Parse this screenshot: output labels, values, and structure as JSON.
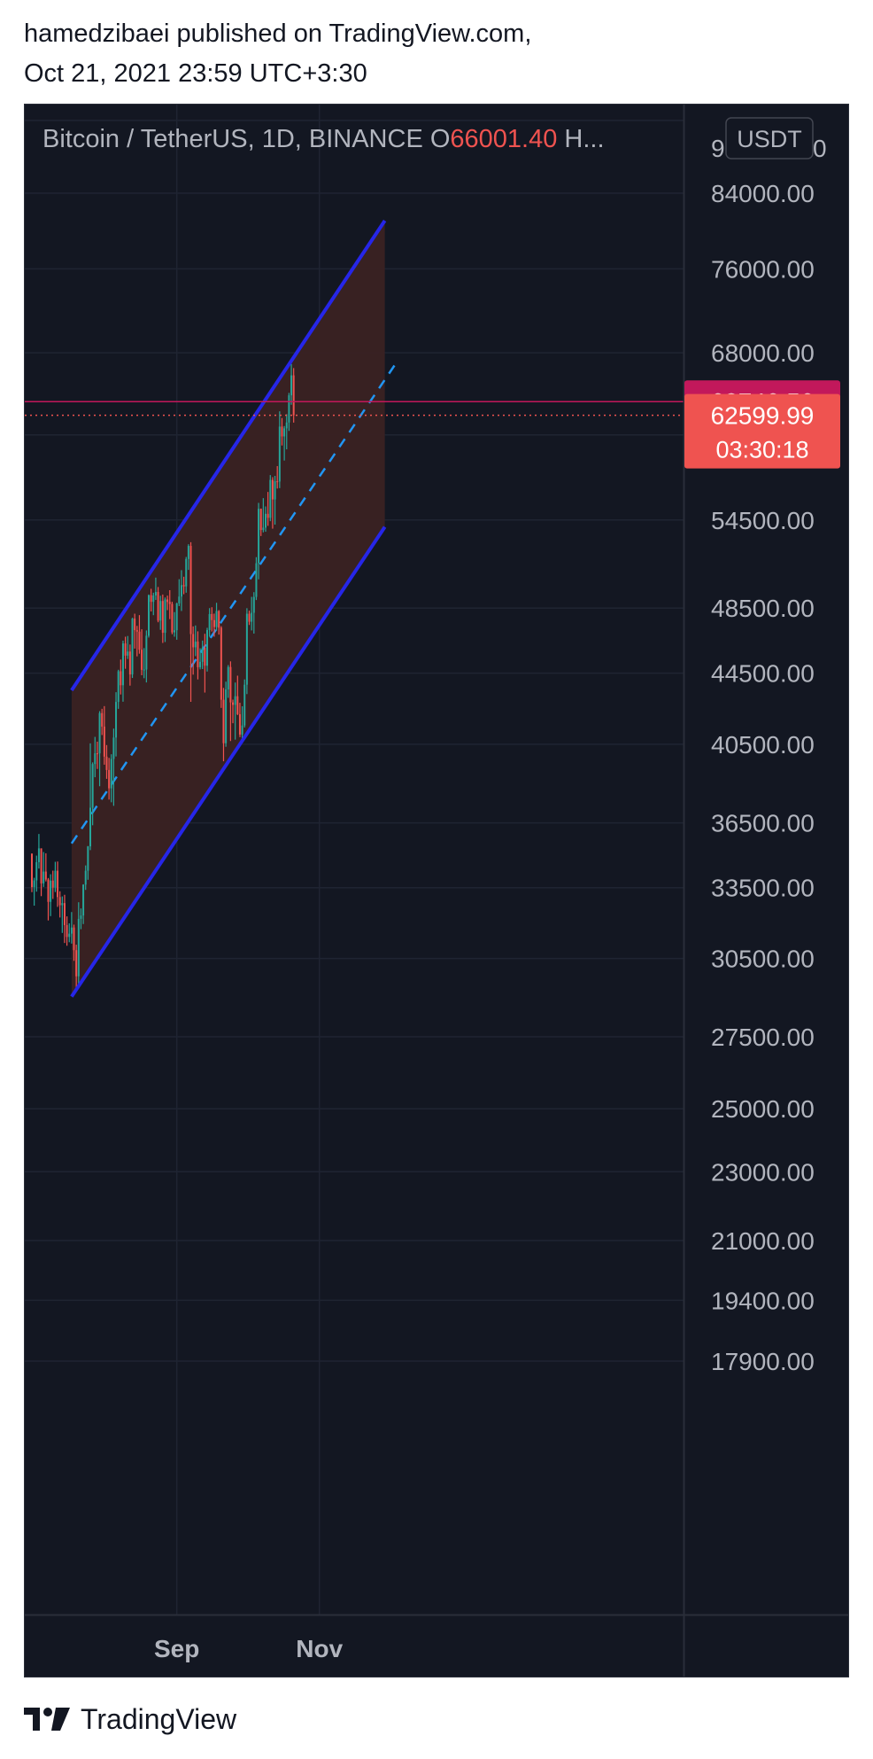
{
  "publication": {
    "author_line": "hamedzibaei published on TradingView.com,",
    "date_line": "Oct 21, 2021 23:59 UTC+3:30"
  },
  "chart_data": {
    "type": "candlestick",
    "title": "Bitcoin / TetherUS, 1D, BINANCE",
    "ohlc_label": "O",
    "ohlc_open": "66001.40",
    "ohlc_more": "H...",
    "currency": "USDT",
    "scale": "log",
    "ylim": [
      17200,
      96000
    ],
    "y_ticks": [
      "84000.00",
      "76000.00",
      "68000.00",
      "54500.00",
      "48500.00",
      "44500.00",
      "40500.00",
      "36500.00",
      "33500.00",
      "30500.00",
      "27500.00",
      "25000.00",
      "23000.00",
      "21000.00",
      "19400.00",
      "17900.00"
    ],
    "top_tick_partial": [
      "9",
      "0"
    ],
    "x_ticks": [
      "Sep",
      "Nov"
    ],
    "x_range": [
      "2021-07-01",
      "2021-12-20"
    ],
    "price_labels": [
      {
        "value": "63746.56",
        "color": "#c2185b"
      },
      {
        "value": "62599.99",
        "sub": "03:30:18",
        "color": "#ef5350"
      }
    ],
    "channel": {
      "color": "#2626e8",
      "fill": "#3a2223",
      "upper": [
        {
          "date": "2021-07-18",
          "price": 43500
        },
        {
          "date": "2021-11-29",
          "price": 81000
        }
      ],
      "lower": [
        {
          "date": "2021-07-18",
          "price": 29000
        },
        {
          "date": "2021-11-29",
          "price": 54000
        }
      ],
      "mid_color": "#2196f3"
    },
    "colors": {
      "up": "#26a69a",
      "down": "#ef5350",
      "bg": "#131722",
      "grid": "#1f2432",
      "text": "#b2b5be"
    },
    "candles": [
      [
        "2021-07-01",
        35045,
        35045,
        33301,
        33526
      ],
      [
        "2021-07-02",
        33526,
        33939,
        32711,
        33822
      ],
      [
        "2021-07-03",
        33822,
        34950,
        33323,
        34648
      ],
      [
        "2021-07-04",
        34648,
        35967,
        34357,
        35287
      ],
      [
        "2021-07-05",
        35287,
        35287,
        33125,
        33690
      ],
      [
        "2021-07-06",
        33690,
        35118,
        33532,
        34220
      ],
      [
        "2021-07-07",
        34220,
        35059,
        33777,
        33862
      ],
      [
        "2021-07-08",
        33862,
        33929,
        32077,
        32875
      ],
      [
        "2021-07-09",
        32875,
        34100,
        32261,
        33815
      ],
      [
        "2021-07-10",
        33815,
        34262,
        33004,
        33502
      ],
      [
        "2021-07-11",
        33502,
        34666,
        33306,
        34258
      ],
      [
        "2021-07-12",
        34258,
        34679,
        32658,
        33086
      ],
      [
        "2021-07-13",
        33086,
        33340,
        32202,
        32729
      ],
      [
        "2021-07-14",
        32729,
        33114,
        31550,
        32820
      ],
      [
        "2021-07-15",
        32820,
        33185,
        31133,
        31880
      ],
      [
        "2021-07-16",
        31880,
        32250,
        31020,
        31383
      ],
      [
        "2021-07-17",
        31383,
        31955,
        31164,
        31520
      ],
      [
        "2021-07-18",
        31520,
        32435,
        31108,
        31778
      ],
      [
        "2021-07-19",
        31778,
        31899,
        30407,
        30839
      ],
      [
        "2021-07-20",
        30839,
        31063,
        29278,
        29790
      ],
      [
        "2021-07-21",
        29790,
        32858,
        29482,
        32144
      ],
      [
        "2021-07-22",
        32144,
        32591,
        31708,
        32287
      ],
      [
        "2021-07-23",
        32287,
        33650,
        31924,
        33634
      ],
      [
        "2021-07-24",
        33634,
        34500,
        33401,
        34258
      ],
      [
        "2021-07-25",
        34258,
        35398,
        33851,
        35381
      ],
      [
        "2021-07-26",
        35381,
        40550,
        35205,
        37237
      ],
      [
        "2021-07-27",
        37237,
        39542,
        36383,
        39457
      ],
      [
        "2021-07-28",
        39457,
        40900,
        38772,
        40019
      ],
      [
        "2021-07-29",
        40019,
        40640,
        39200,
        40016
      ],
      [
        "2021-07-30",
        40016,
        42316,
        38313,
        42206
      ],
      [
        "2021-07-31",
        42206,
        42448,
        41000,
        41461
      ],
      [
        "2021-08-01",
        41461,
        42599,
        39422,
        39845
      ],
      [
        "2021-08-02",
        39845,
        40459,
        38690,
        39147
      ],
      [
        "2021-08-03",
        39147,
        39780,
        37642,
        38207
      ],
      [
        "2021-08-04",
        38207,
        39969,
        37508,
        39723
      ],
      [
        "2021-08-05",
        39723,
        41350,
        37332,
        40862
      ],
      [
        "2021-08-06",
        40862,
        43392,
        39853,
        42836
      ],
      [
        "2021-08-07",
        42836,
        44700,
        42446,
        44614
      ],
      [
        "2021-08-08",
        44614,
        45310,
        43261,
        43792
      ],
      [
        "2021-08-09",
        43792,
        46456,
        42848,
        46285
      ],
      [
        "2021-08-10",
        46285,
        46700,
        44759,
        45543
      ],
      [
        "2021-08-11",
        45543,
        46743,
        45341,
        45789
      ],
      [
        "2021-08-12",
        45789,
        46218,
        43770,
        44422
      ],
      [
        "2021-08-13",
        44422,
        47886,
        44217,
        47833
      ],
      [
        "2021-08-14",
        47833,
        48144,
        45971,
        47109
      ],
      [
        "2021-08-15",
        47109,
        47372,
        45500,
        47014
      ],
      [
        "2021-08-16",
        47014,
        48053,
        45660,
        45902
      ],
      [
        "2021-08-17",
        45902,
        47160,
        44376,
        44696
      ],
      [
        "2021-08-18",
        44696,
        46000,
        44203,
        44714
      ],
      [
        "2021-08-19",
        44714,
        47088,
        43955,
        46760
      ],
      [
        "2021-08-20",
        46760,
        49382,
        46646,
        49339
      ],
      [
        "2021-08-21",
        49339,
        49757,
        48285,
        48905
      ],
      [
        "2021-08-22",
        48905,
        49500,
        48050,
        49321
      ],
      [
        "2021-08-23",
        49321,
        50500,
        49028,
        49546
      ],
      [
        "2021-08-24",
        49546,
        49875,
        47600,
        47706
      ],
      [
        "2021-08-25",
        47706,
        49300,
        47127,
        48960
      ],
      [
        "2021-08-26",
        48960,
        49380,
        46315,
        46942
      ],
      [
        "2021-08-27",
        46942,
        49188,
        46371,
        49058
      ],
      [
        "2021-08-28",
        49058,
        49309,
        48370,
        48897
      ],
      [
        "2021-08-29",
        48897,
        49666,
        47800,
        48767
      ],
      [
        "2021-08-30",
        48767,
        48908,
        46853,
        46970
      ],
      [
        "2021-08-31",
        46970,
        48246,
        46700,
        47100
      ],
      [
        "2021-09-01",
        47100,
        48843,
        46512,
        48810
      ],
      [
        "2021-09-02",
        48810,
        50392,
        48630,
        49246
      ],
      [
        "2021-09-03",
        49246,
        51000,
        48316,
        49999
      ],
      [
        "2021-09-04",
        49999,
        50558,
        49400,
        49915
      ],
      [
        "2021-09-05",
        49915,
        51900,
        49500,
        51756
      ],
      [
        "2021-09-06",
        51756,
        52780,
        51017,
        52663
      ],
      [
        "2021-09-07",
        52663,
        52920,
        42843,
        46863
      ],
      [
        "2021-09-08",
        46863,
        47340,
        44412,
        46048
      ],
      [
        "2021-09-09",
        46048,
        47399,
        45513,
        46395
      ],
      [
        "2021-09-10",
        46395,
        47033,
        44132,
        44850
      ],
      [
        "2021-09-11",
        44850,
        45988,
        44722,
        45173
      ],
      [
        "2021-09-12",
        45173,
        46460,
        44742,
        46025
      ],
      [
        "2021-09-13",
        46025,
        46880,
        43370,
        44940
      ],
      [
        "2021-09-14",
        44940,
        47250,
        44594,
        47111
      ],
      [
        "2021-09-15",
        47111,
        48500,
        46700,
        48121
      ],
      [
        "2021-09-16",
        48121,
        48557,
        47021,
        47737
      ],
      [
        "2021-09-17",
        47737,
        48150,
        46699,
        47299
      ],
      [
        "2021-09-18",
        47299,
        48843,
        47071,
        48314
      ],
      [
        "2021-09-19",
        48314,
        48372,
        46829,
        47260
      ],
      [
        "2021-09-20",
        47260,
        47356,
        42500,
        42961
      ],
      [
        "2021-09-21",
        42961,
        43639,
        39600,
        40558
      ],
      [
        "2021-09-22",
        40558,
        44000,
        40368,
        43550
      ],
      [
        "2021-09-23",
        43550,
        44978,
        43069,
        44865
      ],
      [
        "2021-09-24",
        44865,
        45200,
        40675,
        42810
      ],
      [
        "2021-09-25",
        42810,
        42966,
        41646,
        42670
      ],
      [
        "2021-09-26",
        42670,
        43950,
        40750,
        43160
      ],
      [
        "2021-09-27",
        43160,
        44350,
        42098,
        42147
      ],
      [
        "2021-09-28",
        42147,
        42787,
        40888,
        41026
      ],
      [
        "2021-09-29",
        41026,
        42590,
        40753,
        41522
      ],
      [
        "2021-09-30",
        41522,
        44132,
        41410,
        43824
      ],
      [
        "2021-10-01",
        43824,
        48495,
        43283,
        48141
      ],
      [
        "2021-10-02",
        48141,
        48336,
        47430,
        47634
      ],
      [
        "2021-10-03",
        47634,
        49228,
        47088,
        48200
      ],
      [
        "2021-10-04",
        48200,
        49536,
        46891,
        49224
      ],
      [
        "2021-10-05",
        49224,
        51886,
        49022,
        51471
      ],
      [
        "2021-10-06",
        51471,
        55750,
        50382,
        55315
      ],
      [
        "2021-10-07",
        55315,
        55332,
        53357,
        53785
      ],
      [
        "2021-10-08",
        53785,
        56100,
        53617,
        53951
      ],
      [
        "2021-10-09",
        53951,
        55489,
        53661,
        54949
      ],
      [
        "2021-10-10",
        54949,
        56561,
        54080,
        54659
      ],
      [
        "2021-10-11",
        54659,
        57839,
        54415,
        57471
      ],
      [
        "2021-10-12",
        57471,
        57680,
        53879,
        56005
      ],
      [
        "2021-10-13",
        56005,
        57777,
        54167,
        57367
      ],
      [
        "2021-10-14",
        57367,
        58532,
        56818,
        57347
      ],
      [
        "2021-10-15",
        57347,
        62933,
        56850,
        61672
      ],
      [
        "2021-10-16",
        61672,
        62378,
        60150,
        60875
      ],
      [
        "2021-10-17",
        60875,
        61718,
        58963,
        61528
      ],
      [
        "2021-10-18",
        61528,
        62695,
        59844,
        62009
      ],
      [
        "2021-10-19",
        62009,
        64486,
        61322,
        64280
      ],
      [
        "2021-10-20",
        64280,
        67000,
        63481,
        66001
      ],
      [
        "2021-10-21",
        66001,
        66639,
        62000,
        62600
      ]
    ]
  }
}
